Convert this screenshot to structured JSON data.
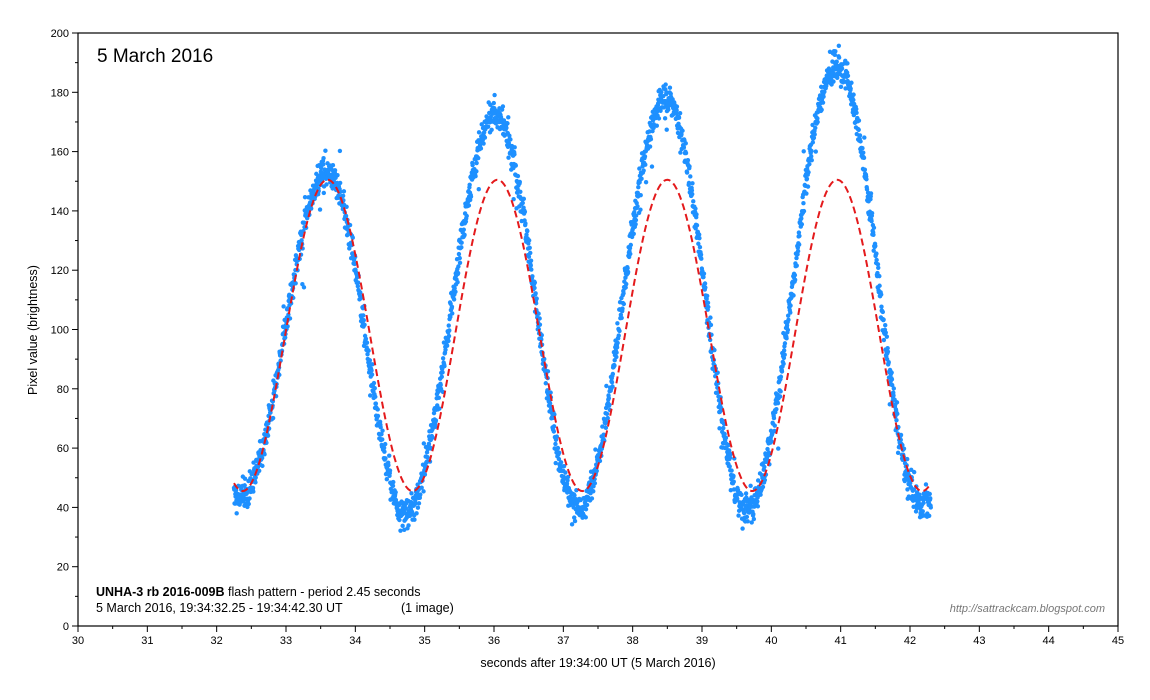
{
  "chart_data": {
    "type": "scatter",
    "title": "5 March 2016",
    "xlabel": "seconds after 19:34:00 UT (5 March 2016)",
    "ylabel": "Pixel value (brightness)",
    "xlim": [
      30,
      45
    ],
    "ylim": [
      0,
      200
    ],
    "x_ticks": [
      "30",
      "31",
      "32",
      "33",
      "34",
      "35",
      "36",
      "37",
      "38",
      "39",
      "40",
      "41",
      "42",
      "43",
      "44",
      "45"
    ],
    "y_ticks": [
      "0",
      "20",
      "40",
      "60",
      "80",
      "100",
      "120",
      "140",
      "160",
      "180",
      "200"
    ],
    "caption": {
      "object_name": "UNHA-3 rb 2016-009B",
      "line1_rest": " flash pattern  -  period 2.45 seconds",
      "line2_date": "5 March 2016,  19:34:32.25 - 19:34:42.30 UT",
      "line2_images": "(1 image)"
    },
    "watermark": "http://sattrackcam.blogspot.com",
    "series": [
      {
        "name": "measured pixel value",
        "kind": "scatter",
        "color": "#1e90ff",
        "x_range": [
          32.25,
          42.3
        ],
        "point_count": 2600,
        "peaks": [
          {
            "t": 33.6,
            "value": 153
          },
          {
            "t": 36.02,
            "value": 172
          },
          {
            "t": 38.48,
            "value": 178
          },
          {
            "t": 40.95,
            "value": 189
          }
        ],
        "troughs": [
          {
            "t": 32.35,
            "value": 44
          },
          {
            "t": 34.72,
            "value": 38
          },
          {
            "t": 37.22,
            "value": 40
          },
          {
            "t": 39.65,
            "value": 39
          },
          {
            "t": 42.15,
            "value": 42
          }
        ]
      },
      {
        "name": "sine fit",
        "kind": "line",
        "style": "dashed",
        "color": "#e41a1c",
        "x_range": [
          32.25,
          42.3
        ],
        "period": 2.45,
        "mean": 98,
        "amplitude": 52.5,
        "peak_times": [
          33.6,
          36.05,
          38.5,
          40.95
        ]
      }
    ]
  }
}
